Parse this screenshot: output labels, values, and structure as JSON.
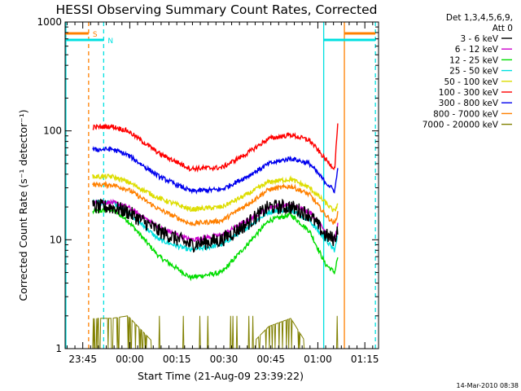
{
  "chart_data": {
    "type": "line",
    "title": "HESSI Observing Summary Count Rates, Corrected",
    "xlabel": "Start Time (21-Aug-09 23:39:22)",
    "ylabel": "Corrected Count Rate (s⁻¹ detector⁻¹)",
    "yscale": "log",
    "ylim": [
      1,
      1000
    ],
    "xlim_minutes_from_start": [
      0,
      100
    ],
    "x_tick_labels": [
      "23:45",
      "00:00",
      "00:15",
      "00:30",
      "00:45",
      "01:00",
      "01:15"
    ],
    "x_tick_minutes_from_start": [
      5.63,
      20.63,
      35.63,
      50.63,
      65.63,
      80.63,
      95.63
    ],
    "y_tick_labels": [
      "1",
      "10",
      "100",
      "1000"
    ],
    "y_tick_values": [
      1,
      10,
      100,
      1000
    ],
    "legend_header": [
      "Det 1,3,4,5,6,9,",
      "Att 0"
    ],
    "legend_position": "right",
    "markers": [
      {
        "label": "S",
        "start": 0,
        "end": 7.5,
        "color": "#ff8000",
        "style": "dashed-end"
      },
      {
        "label": "N",
        "start": 0,
        "end": 12.3,
        "color": "#00e0e0",
        "style": "dashed-end"
      }
    ],
    "data_x_minutes": [
      8.8,
      15,
      20,
      30,
      40,
      50,
      58,
      65,
      72,
      78,
      83,
      86,
      87
    ],
    "series": [
      {
        "name": "3 - 6 keV",
        "color": "#000000",
        "values": [
          20,
          20,
          18,
          12,
          9,
          10,
          14,
          20,
          20,
          17,
          11,
          10,
          13
        ]
      },
      {
        "name": "6 - 12 keV",
        "color": "#cc00cc",
        "values": [
          22,
          22,
          20,
          13,
          10,
          11,
          15,
          20,
          21,
          18,
          12,
          10,
          14
        ]
      },
      {
        "name": "12 - 25 keV",
        "color": "#00dd00",
        "values": [
          18,
          19,
          15,
          7,
          4.5,
          5,
          9,
          15,
          17,
          12,
          6,
          5,
          7
        ]
      },
      {
        "name": "25 - 50 keV",
        "color": "#00e0e0",
        "values": [
          22,
          22,
          18,
          10,
          8,
          9,
          13,
          18,
          19,
          15,
          10,
          8,
          11
        ]
      },
      {
        "name": "50 - 100 keV",
        "color": "#dddd00",
        "values": [
          38,
          38,
          34,
          24,
          19,
          20,
          26,
          34,
          36,
          30,
          22,
          18,
          22
        ]
      },
      {
        "name": "100 - 300 keV",
        "color": "#ff0000",
        "values": [
          108,
          110,
          100,
          62,
          45,
          46,
          62,
          85,
          92,
          82,
          55,
          45,
          120
        ]
      },
      {
        "name": "300 - 800 keV",
        "color": "#0000ee",
        "values": [
          67,
          68,
          60,
          38,
          28,
          29,
          38,
          50,
          56,
          50,
          34,
          28,
          45
        ]
      },
      {
        "name": "800 - 7000 keV",
        "color": "#ff8000",
        "values": [
          32,
          32,
          29,
          19,
          14,
          15,
          21,
          29,
          31,
          26,
          17,
          14,
          18
        ]
      },
      {
        "name": "7000 - 20000 keV",
        "color": "#808000",
        "values": [
          1.9,
          1.9,
          2,
          1,
          1,
          1,
          1,
          1.6,
          1.9,
          1,
          1,
          1,
          1
        ]
      }
    ],
    "vlines": [
      {
        "x": 0.25,
        "color": "#00e0e0",
        "style": "solid"
      },
      {
        "x": 7.5,
        "color": "#ff8000",
        "style": "dashed"
      },
      {
        "x": 12.3,
        "color": "#00e0e0",
        "style": "dashed"
      },
      {
        "x": 82.5,
        "color": "#00e0e0",
        "style": "solid"
      },
      {
        "x": 89.1,
        "color": "#ff8000",
        "style": "solid"
      },
      {
        "x": 99.0,
        "color": "#00e0e0",
        "style": "dashed"
      }
    ],
    "grid": false
  },
  "footer_timestamp": "14-Mar-2010 08:38"
}
